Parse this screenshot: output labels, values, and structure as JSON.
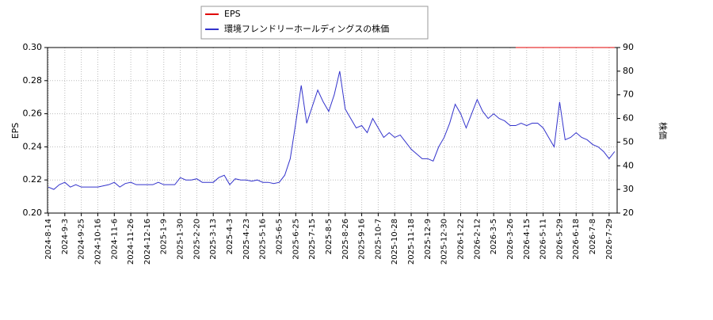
{
  "chart_data": {
    "type": "line",
    "categories": [
      "2024-8-14",
      null,
      null,
      "2024-9-3",
      null,
      null,
      "2024-9-25",
      null,
      null,
      "2024-10-16",
      null,
      null,
      "2024-11-6",
      null,
      null,
      "2024-11-26",
      null,
      null,
      "2024-12-16",
      null,
      null,
      "2025-1-9",
      null,
      null,
      "2025-1-30",
      null,
      null,
      "2025-2-20",
      null,
      null,
      "2025-3-13",
      null,
      null,
      "2025-4-3",
      null,
      null,
      "2025-4-23",
      null,
      null,
      "2025-5-16",
      null,
      null,
      "2025-6-5",
      null,
      null,
      "2025-6-25",
      null,
      null,
      "2025-7-15",
      null,
      null,
      "2025-8-5",
      null,
      null,
      "2025-8-26",
      null,
      null,
      "2025-9-16",
      null,
      null,
      "2025-10-7",
      null,
      null,
      "2025-10-28",
      null,
      null,
      "2025-11-18",
      null,
      null,
      "2025-12-9",
      null,
      null,
      "2025-12-30",
      null,
      null,
      "2026-1-22",
      null,
      null,
      "2026-2-12",
      null,
      null,
      "2026-3-5",
      null,
      null,
      "2026-3-26",
      null,
      null,
      "2026-4-15",
      null,
      null,
      "2026-5-11",
      null,
      null,
      "2026-5-29",
      null,
      null,
      "2026-6-18",
      null,
      null,
      "2026-7-8",
      null,
      null,
      "2026-7-29",
      null
    ],
    "series": [
      {
        "name": "EPS",
        "color": "#e00000",
        "values": [
          null,
          null,
          null,
          null,
          null,
          null,
          null,
          null,
          null,
          null,
          null,
          null,
          null,
          null,
          null,
          null,
          null,
          null,
          null,
          null,
          null,
          null,
          null,
          null,
          null,
          null,
          null,
          null,
          null,
          null,
          null,
          null,
          null,
          null,
          null,
          null,
          null,
          null,
          null,
          null,
          null,
          null,
          null,
          null,
          null,
          null,
          null,
          null,
          null,
          null,
          null,
          null,
          null,
          null,
          null,
          null,
          null,
          null,
          null,
          null,
          null,
          null,
          null,
          null,
          null,
          null,
          null,
          null,
          null,
          null,
          null,
          null,
          null,
          null,
          null,
          null,
          null,
          null,
          null,
          null,
          null,
          null,
          null,
          null,
          null,
          0.3,
          0.3,
          0.3,
          0.3,
          0.3,
          0.3,
          0.3,
          0.3,
          0.3,
          0.3,
          0.3,
          0.3,
          0.3,
          0.3,
          0.3,
          0.3,
          0.3,
          0.3,
          0.3
        ]
      },
      {
        "name": "環境フレンドリーホールディングスの株価",
        "color": "#3333cc",
        "axis": "y2",
        "values": [
          31,
          30,
          32,
          33,
          31,
          32,
          31,
          31,
          31,
          31,
          31.5,
          32,
          33,
          31,
          32.5,
          33,
          32,
          32,
          32,
          32,
          33,
          32,
          32,
          32,
          35,
          34,
          34,
          34.5,
          33,
          33,
          33,
          35,
          36,
          32,
          34.5,
          34,
          34,
          33.5,
          34,
          33,
          33,
          32.5,
          33,
          36,
          43,
          58,
          74,
          58,
          65,
          72,
          67,
          63,
          70,
          80,
          64,
          60,
          56,
          57,
          54,
          60,
          56,
          52,
          54,
          52,
          53,
          50,
          47,
          45,
          43,
          43,
          42,
          48,
          52,
          58,
          66,
          62,
          56,
          62,
          68,
          63,
          60,
          62,
          60,
          59,
          57,
          57,
          58,
          57,
          58,
          58,
          56,
          52,
          48,
          67,
          51,
          52,
          54,
          52,
          51,
          49,
          48,
          46,
          43,
          46
        ]
      }
    ],
    "ylabel": "EPS",
    "y2label": "株価",
    "ylim": [
      0.2,
      0.3
    ],
    "yticks": [
      {
        "value": 0.2,
        "label": "0.20"
      },
      0.22,
      0.24,
      0.26,
      0.28,
      {
        "value": 0.3,
        "label": "0.30"
      }
    ],
    "y2lim": [
      20,
      90
    ],
    "y2ticks": [
      20,
      30,
      40,
      50,
      60,
      70,
      80,
      90
    ],
    "grid": true,
    "legend": "top"
  }
}
